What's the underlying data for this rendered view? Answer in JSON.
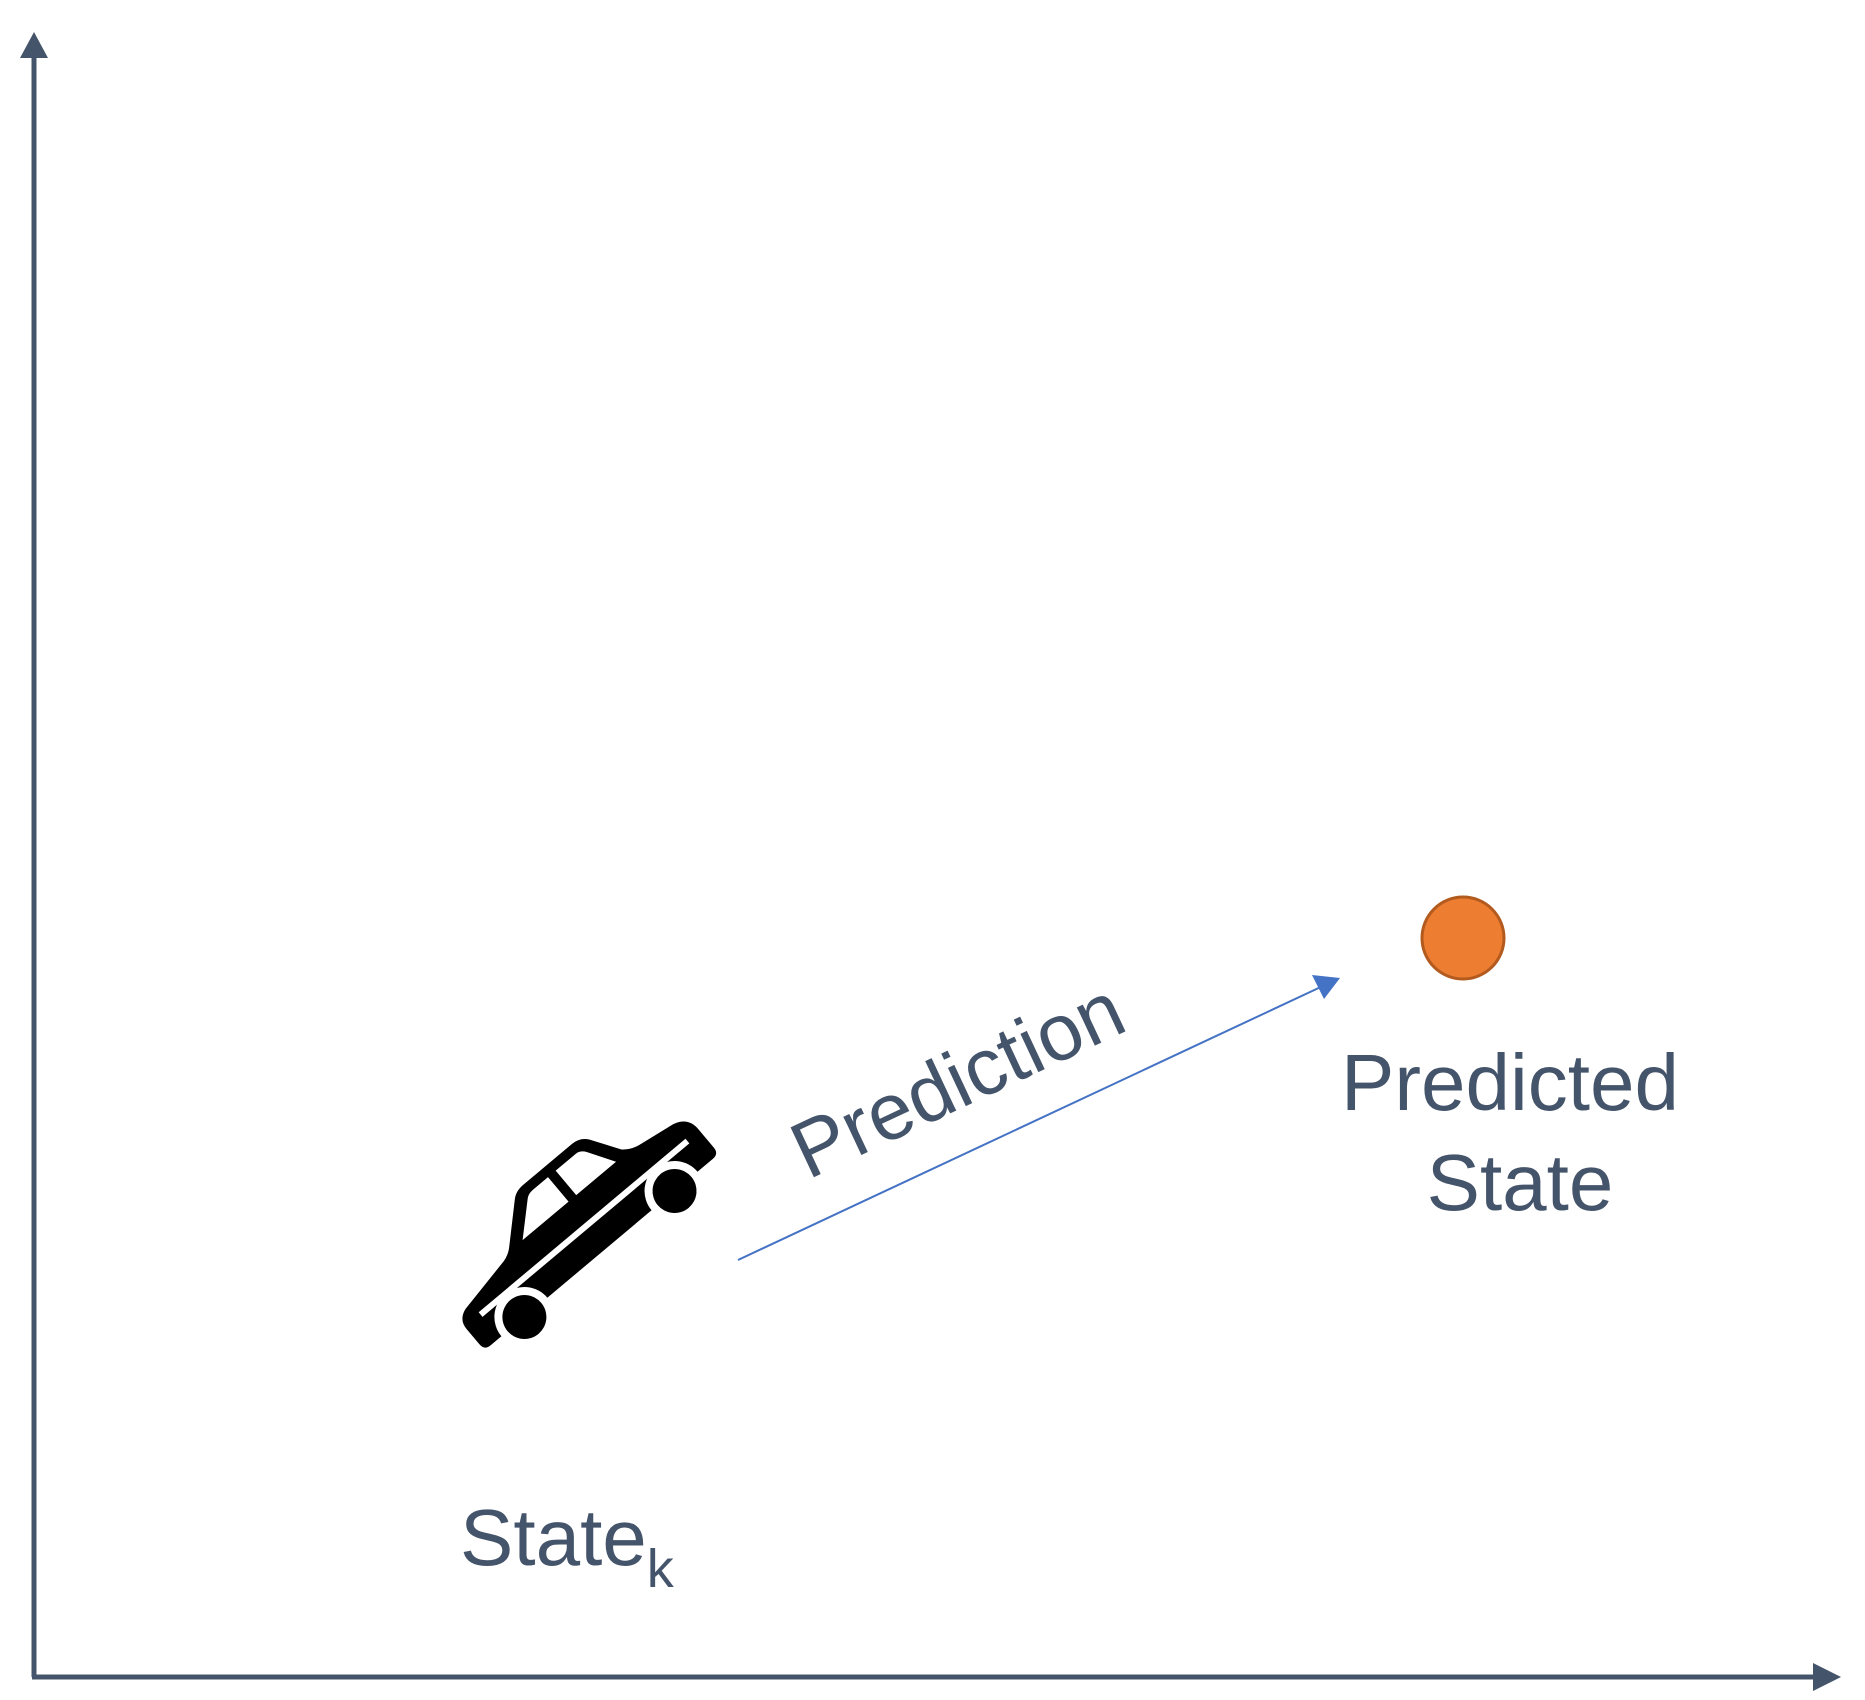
{
  "colors": {
    "axis": "#44546a",
    "text": "#44546a",
    "arrow": "#4472c4",
    "point_fill": "#ed7d31",
    "point_stroke": "#b35a1f",
    "car": "#000000"
  },
  "axes": {
    "x_label": "",
    "y_label": ""
  },
  "current_state": {
    "icon": "car-icon",
    "label_main": "State",
    "label_subscript": "k"
  },
  "prediction_arrow": {
    "label": "Prediction"
  },
  "predicted_state": {
    "label_line1": "Predicted",
    "label_line2": "State"
  }
}
